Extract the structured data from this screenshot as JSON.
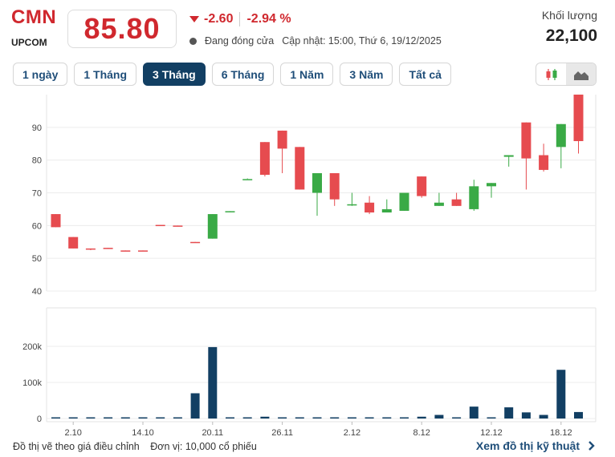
{
  "header": {
    "ticker": "CMN",
    "exchange": "UPCOM",
    "price": "85.80",
    "change_abs": "-2.60",
    "change_pct": "-2.94 %",
    "status": "Đang đóng cửa",
    "updated": "Cập nhật: 15:00, Thứ 6, 19/12/2025",
    "volume_label": "Khối lượng",
    "volume_value": "22,100"
  },
  "colors": {
    "up": "#3aaa46",
    "down": "#e64b4f",
    "volume": "#123f63",
    "accent": "#d0282e"
  },
  "range_tabs": [
    {
      "label": "1 ngày",
      "active": false
    },
    {
      "label": "1 Tháng",
      "active": false
    },
    {
      "label": "3 Tháng",
      "active": true
    },
    {
      "label": "6 Tháng",
      "active": false
    },
    {
      "label": "1 Năm",
      "active": false
    },
    {
      "label": "3 Năm",
      "active": false
    },
    {
      "label": "Tất cả",
      "active": false
    }
  ],
  "chart_type_buttons": [
    {
      "icon": "candlestick-icon",
      "active": false
    },
    {
      "icon": "area-chart-icon",
      "active": true
    }
  ],
  "chart_data": {
    "type": "candlestick",
    "price_axis": {
      "ticks": [
        "90",
        "80",
        "70",
        "60",
        "50",
        "40"
      ],
      "range": [
        40,
        100
      ]
    },
    "volume_axis": {
      "ticks": [
        "200k",
        "100k",
        "0"
      ],
      "range": [
        0,
        200000
      ]
    },
    "x_tick_labels": [
      "2.10",
      "14.10",
      "20.11",
      "26.11",
      "2.12",
      "8.12",
      "12.12",
      "18.12"
    ],
    "grid": true,
    "candles": [
      {
        "o": 63.5,
        "h": 63.5,
        "l": 59.5,
        "c": 59.5,
        "v": 1500
      },
      {
        "o": 56.5,
        "h": 56.5,
        "l": 53,
        "c": 53,
        "v": 0
      },
      {
        "o": 53,
        "h": 53,
        "l": 52.5,
        "c": 52.8,
        "v": 0
      },
      {
        "o": 53.2,
        "h": 53.2,
        "l": 53,
        "c": 53,
        "v": 0
      },
      {
        "o": 52.4,
        "h": 52.4,
        "l": 52.2,
        "c": 52.2,
        "v": 0
      },
      {
        "o": 52.4,
        "h": 52.4,
        "l": 52.2,
        "c": 52.2,
        "v": 0
      },
      {
        "o": 60.2,
        "h": 60.2,
        "l": 60,
        "c": 60,
        "v": 0
      },
      {
        "o": 60,
        "h": 60,
        "l": 59.8,
        "c": 59.8,
        "v": 0
      },
      {
        "o": 55,
        "h": 55,
        "l": 54.8,
        "c": 54.8,
        "v": 70000
      },
      {
        "o": 56,
        "h": 63.5,
        "l": 56,
        "c": 63.5,
        "v": 198000
      },
      {
        "o": 64.2,
        "h": 64.4,
        "l": 64.2,
        "c": 64.4,
        "v": 2000
      },
      {
        "o": 74.2,
        "h": 74.4,
        "l": 74.2,
        "c": 74.2,
        "v": 0
      },
      {
        "o": 85.5,
        "h": 85.5,
        "l": 75,
        "c": 75.5,
        "v": 5000
      },
      {
        "o": 89,
        "h": 89,
        "l": 76,
        "c": 83.5,
        "v": 0
      },
      {
        "o": 84,
        "h": 84,
        "l": 71,
        "c": 71,
        "v": 2000
      },
      {
        "o": 70,
        "h": 76,
        "l": 63,
        "c": 76,
        "v": 2000
      },
      {
        "o": 76,
        "h": 76,
        "l": 66,
        "c": 68,
        "v": 2000
      },
      {
        "o": 66.5,
        "h": 70,
        "l": 66,
        "c": 66.5,
        "v": 3000
      },
      {
        "o": 67,
        "h": 69,
        "l": 63.5,
        "c": 64,
        "v": 2000
      },
      {
        "o": 64,
        "h": 68,
        "l": 64,
        "c": 65,
        "v": 2000
      },
      {
        "o": 64.5,
        "h": 70,
        "l": 64.5,
        "c": 70,
        "v": 0
      },
      {
        "o": 75,
        "h": 75,
        "l": 68.5,
        "c": 69,
        "v": 5000
      },
      {
        "o": 66,
        "h": 70,
        "l": 66,
        "c": 67,
        "v": 10000
      },
      {
        "o": 68,
        "h": 70,
        "l": 66,
        "c": 66,
        "v": 0
      },
      {
        "o": 65,
        "h": 74,
        "l": 64.5,
        "c": 72,
        "v": 33000
      },
      {
        "o": 72,
        "h": 73,
        "l": 68.5,
        "c": 73,
        "v": 0
      },
      {
        "o": 81,
        "h": 81.5,
        "l": 78,
        "c": 81.5,
        "v": 31000
      },
      {
        "o": 91.5,
        "h": 91.5,
        "l": 71,
        "c": 80.5,
        "v": 17000
      },
      {
        "o": 81.5,
        "h": 85,
        "l": 76.5,
        "c": 77,
        "v": 10000
      },
      {
        "o": 84,
        "h": 91,
        "l": 77.5,
        "c": 91,
        "v": 135000
      },
      {
        "o": 100,
        "h": 100,
        "l": 82,
        "c": 85.8,
        "v": 18000
      }
    ]
  },
  "footer": {
    "note": "Đồ thị vẽ theo giá điều chỉnh",
    "unit": "Đơn vị: 10,000 cổ phiếu",
    "link": "Xem đồ thị kỹ thuật"
  }
}
